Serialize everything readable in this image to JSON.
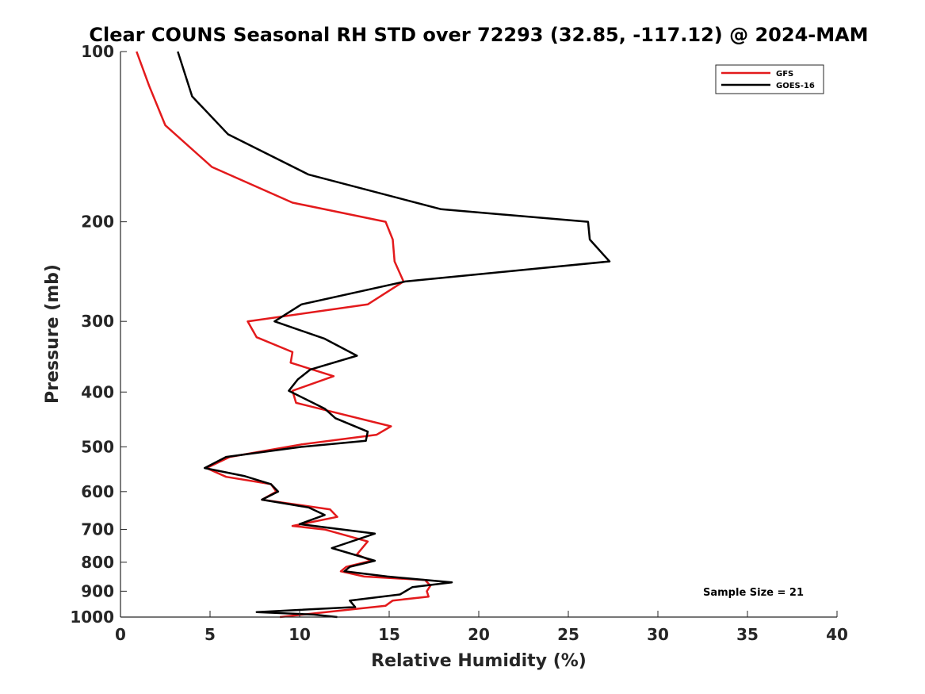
{
  "chart_data": {
    "type": "line",
    "title": "Clear COUNS Seasonal RH STD over 72293 (32.85, -117.12) @ 2024-MAM",
    "xlabel": "Relative Humidity (%)",
    "ylabel": "Pressure (mb)",
    "xlim": [
      0,
      40
    ],
    "ylim": [
      1000,
      100
    ],
    "yscale": "log",
    "xticks": [
      "0",
      "5",
      "10",
      "15",
      "20",
      "25",
      "30",
      "35",
      "40"
    ],
    "yticks": [
      "100",
      "200",
      "300",
      "400",
      "500",
      "600",
      "700",
      "800",
      "900",
      "1000"
    ],
    "legend_position": "top-right",
    "annotation": "Sample Size = 21",
    "series": [
      {
        "name": "GFS",
        "color": "#e31a1c",
        "points": [
          [
            0.9,
            100
          ],
          [
            1.6,
            115
          ],
          [
            2.5,
            135
          ],
          [
            5.1,
            160
          ],
          [
            9.6,
            185
          ],
          [
            14.8,
            200
          ],
          [
            15.2,
            215
          ],
          [
            15.3,
            235
          ],
          [
            15.8,
            255
          ],
          [
            13.8,
            280
          ],
          [
            7.1,
            300
          ],
          [
            7.6,
            320
          ],
          [
            9.6,
            340
          ],
          [
            9.5,
            355
          ],
          [
            11.9,
            375
          ],
          [
            9.6,
            398
          ],
          [
            9.8,
            418
          ],
          [
            15.1,
            460
          ],
          [
            14.3,
            476
          ],
          [
            10.1,
            495
          ],
          [
            6.1,
            521
          ],
          [
            4.8,
            545
          ],
          [
            5.9,
            565
          ],
          [
            8.4,
            582
          ],
          [
            8.7,
            600
          ],
          [
            7.9,
            620
          ],
          [
            11.7,
            645
          ],
          [
            12.1,
            665
          ],
          [
            9.6,
            690
          ],
          [
            11.4,
            700
          ],
          [
            13.8,
            735
          ],
          [
            13.2,
            775
          ],
          [
            14.0,
            795
          ],
          [
            12.6,
            815
          ],
          [
            12.3,
            830
          ],
          [
            13.6,
            848
          ],
          [
            17.0,
            860
          ],
          [
            17.3,
            880
          ],
          [
            17.1,
            900
          ],
          [
            17.2,
            920
          ],
          [
            15.2,
            935
          ],
          [
            14.8,
            955
          ],
          [
            12.1,
            975
          ],
          [
            8.9,
            1000
          ]
        ]
      },
      {
        "name": "GOES-16",
        "color": "#000000",
        "points": [
          [
            3.2,
            100
          ],
          [
            4.0,
            120
          ],
          [
            6.0,
            140
          ],
          [
            10.5,
            165
          ],
          [
            17.9,
            190
          ],
          [
            26.1,
            200
          ],
          [
            26.2,
            215
          ],
          [
            27.3,
            235
          ],
          [
            15.9,
            255
          ],
          [
            10.1,
            280
          ],
          [
            8.6,
            300
          ],
          [
            11.4,
            322
          ],
          [
            13.2,
            345
          ],
          [
            10.6,
            365
          ],
          [
            9.9,
            380
          ],
          [
            9.4,
            398
          ],
          [
            11.4,
            428
          ],
          [
            12.0,
            445
          ],
          [
            13.8,
            470
          ],
          [
            13.7,
            488
          ],
          [
            10.1,
            500
          ],
          [
            5.9,
            521
          ],
          [
            4.7,
            545
          ],
          [
            6.9,
            563
          ],
          [
            8.4,
            582
          ],
          [
            8.8,
            600
          ],
          [
            7.9,
            620
          ],
          [
            10.5,
            640
          ],
          [
            11.4,
            660
          ],
          [
            10.0,
            685
          ],
          [
            14.2,
            712
          ],
          [
            11.8,
            755
          ],
          [
            14.2,
            795
          ],
          [
            12.8,
            815
          ],
          [
            12.5,
            830
          ],
          [
            14.9,
            848
          ],
          [
            18.5,
            868
          ],
          [
            16.3,
            885
          ],
          [
            15.6,
            912
          ],
          [
            12.8,
            935
          ],
          [
            13.1,
            960
          ],
          [
            7.6,
            980
          ],
          [
            10.8,
            990
          ],
          [
            12.1,
            1000
          ]
        ]
      }
    ]
  }
}
